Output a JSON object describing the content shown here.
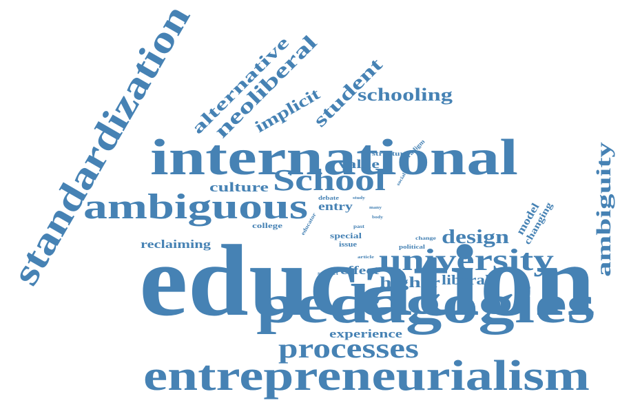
{
  "word_cloud": {
    "color": "#4682b4",
    "words": [
      {
        "id": "education",
        "text": "education",
        "rotated": false
      },
      {
        "id": "pedagogies",
        "text": "pedagogies",
        "rotated": false
      },
      {
        "id": "entrepreneurialism",
        "text": "entrepreneurialism",
        "rotated": false
      },
      {
        "id": "international",
        "text": "international",
        "rotated": false
      },
      {
        "id": "standardization",
        "text": "standardization",
        "rotated": true
      },
      {
        "id": "ambiguous",
        "text": "ambiguous",
        "rotated": false
      },
      {
        "id": "university",
        "text": "university",
        "rotated": false
      },
      {
        "id": "school",
        "text": "School",
        "rotated": false
      },
      {
        "id": "processes",
        "text": "processes",
        "rotated": false
      },
      {
        "id": "ambiguity",
        "text": "ambiguity",
        "rotated": true
      },
      {
        "id": "neoliberal",
        "text": "neoliberal",
        "rotated": true
      },
      {
        "id": "alternative",
        "text": "alternative",
        "rotated": true
      },
      {
        "id": "student",
        "text": "student",
        "rotated": true
      },
      {
        "id": "implicit",
        "text": "implicit",
        "rotated": true
      },
      {
        "id": "schooling",
        "text": "schooling",
        "rotated": false
      },
      {
        "id": "design",
        "text": "design",
        "rotated": false
      },
      {
        "id": "higher",
        "text": "higher",
        "rotated": false
      },
      {
        "id": "liberal",
        "text": "liberal",
        "rotated": false
      },
      {
        "id": "experience",
        "text": "experience",
        "rotated": false
      },
      {
        "id": "culture",
        "text": "culture",
        "rotated": false
      },
      {
        "id": "value",
        "text": "value",
        "rotated": false
      },
      {
        "id": "entry",
        "text": "entry",
        "rotated": false
      },
      {
        "id": "reclaiming",
        "text": "reclaiming",
        "rotated": false
      },
      {
        "id": "effect",
        "text": "effect",
        "rotated": false
      },
      {
        "id": "model",
        "text": "model",
        "rotated": true
      },
      {
        "id": "changing",
        "text": "changing",
        "rotated": true
      },
      {
        "id": "special",
        "text": "special",
        "rotated": false
      },
      {
        "id": "issue",
        "text": "issue",
        "rotated": false
      },
      {
        "id": "college",
        "text": "college",
        "rotated": false
      },
      {
        "id": "structure",
        "text": "structure",
        "rotated": false
      },
      {
        "id": "paradigm",
        "text": "paradigm",
        "rotated": true
      },
      {
        "id": "debate",
        "text": "debate",
        "rotated": false
      },
      {
        "id": "study",
        "text": "study",
        "rotated": false
      },
      {
        "id": "past",
        "text": "past",
        "rotated": false
      },
      {
        "id": "social",
        "text": "social",
        "rotated": true
      },
      {
        "id": "many",
        "text": "many",
        "rotated": false
      },
      {
        "id": "body",
        "text": "body",
        "rotated": false
      },
      {
        "id": "educator",
        "text": "educator",
        "rotated": true
      },
      {
        "id": "change",
        "text": "change",
        "rotated": false
      },
      {
        "id": "political",
        "text": "political",
        "rotated": false
      },
      {
        "id": "article",
        "text": "article",
        "rotated": false
      },
      {
        "id": "subject",
        "text": "subject",
        "rotated": false
      }
    ]
  }
}
